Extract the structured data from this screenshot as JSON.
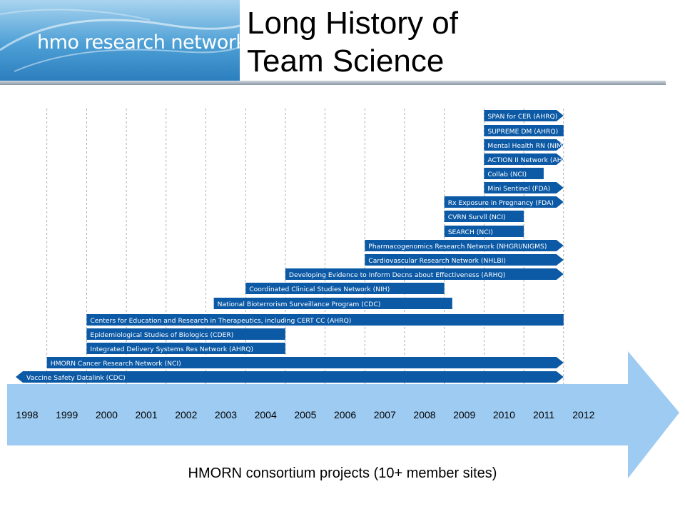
{
  "header": {
    "logo_text": "hmo research network",
    "title_line1": "Long History of",
    "title_line2": "Team Science"
  },
  "colors": {
    "bar": "#0c5aa6",
    "arrow": "#9dcbf2",
    "bar_text": "#ffffff",
    "grid": "#9a9a9a"
  },
  "chart_data": {
    "type": "gantt",
    "xlabel": "HMORN consortium projects (10+ member sites)",
    "years": [
      "1998",
      "1999",
      "2000",
      "2001",
      "2002",
      "2003",
      "2004",
      "2005",
      "2006",
      "2007",
      "2008",
      "2009",
      "2010",
      "2011",
      "2012"
    ],
    "series": [
      {
        "name": "SPAN for CER (AHRQ)",
        "start": 2010,
        "end": 2012,
        "ongoing": true
      },
      {
        "name": "SUPREME DM (AHRQ)",
        "start": 2010,
        "end": 2012,
        "ongoing": false
      },
      {
        "name": "Mental Health RN (NIMH)",
        "start": 2010,
        "end": 2012,
        "ongoing": true
      },
      {
        "name": "ACTION II Network (AHRQ)",
        "start": 2010,
        "end": 2012,
        "ongoing": true
      },
      {
        "name": "Collab (NCI)",
        "start": 2010,
        "end": 2011.5,
        "ongoing": false
      },
      {
        "name": "Mini Sentinel (FDA)",
        "start": 2010,
        "end": 2012,
        "ongoing": true
      },
      {
        "name": "Rx Exposure in Pregnancy (FDA)",
        "start": 2009,
        "end": 2012,
        "ongoing": true
      },
      {
        "name": "CVRN Survll (NCI)",
        "start": 2009,
        "end": 2011,
        "ongoing": false
      },
      {
        "name": "SEARCH (NCI)",
        "start": 2009,
        "end": 2011,
        "ongoing": false
      },
      {
        "name": "Pharmacogenomics Research Network (NHGRI/NIGMS)",
        "start": 2007,
        "end": 2012,
        "ongoing": true
      },
      {
        "name": "Cardiovascular Research Network (NHLBI)",
        "start": 2007,
        "end": 2012,
        "ongoing": true
      },
      {
        "name": "Developing Evidence to Inform Decns about Effectiveness (ARHQ)",
        "start": 2005,
        "end": 2012,
        "ongoing": true
      },
      {
        "name": "Coordinated Clinical Studies Network (NIH)",
        "start": 2004,
        "end": 2009,
        "ongoing": false
      },
      {
        "name": "National Bioterrorism Surveillance Program (CDC)",
        "start": 2003.2,
        "end": 2009.2,
        "ongoing": false
      },
      {
        "name": "Centers for Education and Research in Therapeutics, including CERT CC (AHRQ)",
        "start": 2000,
        "end": 2012,
        "ongoing": false
      },
      {
        "name": "Epidemiological Studies of Biologics (CDER)",
        "start": 2000,
        "end": 2005,
        "ongoing": false
      },
      {
        "name": "Integrated Delivery Systems Res Network (AHRQ)",
        "start": 2000,
        "end": 2005,
        "ongoing": false
      },
      {
        "name": "HMORN Cancer Research Network (NCI)",
        "start": 1999,
        "end": 2012,
        "ongoing": true
      },
      {
        "name": "Vaccine Safety Datalink (CDC)",
        "start": 1998,
        "end": 2012,
        "ongoing": true,
        "ongoing_back": true
      }
    ]
  }
}
